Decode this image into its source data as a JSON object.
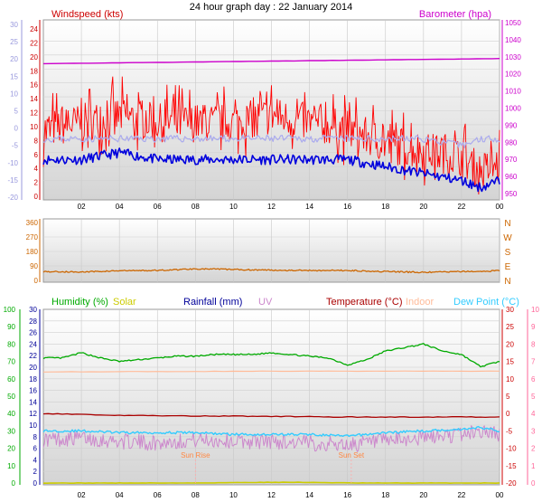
{
  "title": "24 hour graph day : 22 January 2014",
  "x_ticks": [
    "02",
    "04",
    "06",
    "08",
    "10",
    "12",
    "14",
    "16",
    "18",
    "20",
    "22",
    "00"
  ],
  "colors": {
    "wind_gust": "#ff0000",
    "wind_avg": "#0000dd",
    "wind_dir_line": "#aaaaee",
    "barometer": "#cc00cc",
    "direction": "#cc6600",
    "humidity": "#00aa00",
    "solar": "#cccc00",
    "rainfall": "#000099",
    "uv": "#cc88cc",
    "temperature": "#aa0000",
    "indoor": "#ffbb99",
    "dewpoint": "#33ccff",
    "axis_left_top": "#9999dd",
    "axis_right_top": "#cc00cc",
    "axis_left_bottom": "#00aa00",
    "axis_right_bottom": "#ff6699"
  },
  "chart_data": [
    {
      "type": "line",
      "panel": "wind-barometer",
      "left_axis_label": "Windspeed (kts)",
      "right_axis_label": "Barometer (hpa)",
      "left_ticks_knots": [
        "24",
        "22",
        "20",
        "18",
        "16",
        "14",
        "12",
        "10",
        "8",
        "6",
        "4",
        "2",
        "0"
      ],
      "left_ticks_outer": [
        "30",
        "25",
        "20",
        "15",
        "10",
        "5",
        "0",
        "-5",
        "-10",
        "-15",
        "-20"
      ],
      "right_ticks": [
        "1050",
        "1040",
        "1030",
        "1020",
        "1010",
        "1000",
        "990",
        "980",
        "970",
        "960",
        "950"
      ],
      "ylim_left": [
        0,
        25
      ],
      "ylim_right": [
        945,
        1052
      ],
      "series": [
        {
          "key": "gust",
          "x": [
            0,
            2,
            4,
            6,
            8,
            10,
            12,
            14,
            16,
            18,
            20,
            22,
            23,
            24
          ],
          "values": [
            9,
            10,
            11,
            10,
            10,
            10,
            11,
            10,
            9,
            7,
            6,
            5,
            3,
            4
          ]
        },
        {
          "key": "avg",
          "x": [
            0,
            2,
            4,
            6,
            8,
            10,
            12,
            14,
            16,
            18,
            20,
            22,
            23,
            24
          ],
          "values": [
            5,
            5,
            6,
            5,
            5,
            5,
            5,
            5,
            5,
            4,
            3,
            2,
            1,
            2
          ]
        },
        {
          "key": "direction_line",
          "x": [
            0,
            2,
            4,
            6,
            8,
            10,
            12,
            14,
            16,
            18,
            20,
            22,
            23,
            24
          ],
          "values": [
            8,
            8,
            8,
            8,
            8,
            8,
            8,
            8,
            8,
            8,
            8,
            7,
            8,
            8
          ]
        },
        {
          "key": "barometer",
          "x": [
            0,
            4,
            8,
            12,
            16,
            20,
            24
          ],
          "values": [
            1026,
            1026.5,
            1027,
            1027.5,
            1028,
            1028.5,
            1029
          ]
        }
      ]
    },
    {
      "type": "line",
      "panel": "direction",
      "left_ticks": [
        "360",
        "270",
        "180",
        "90",
        "0"
      ],
      "right_labels": [
        "N",
        "W",
        "S",
        "E",
        "N"
      ],
      "ylim": [
        0,
        360
      ],
      "series": [
        {
          "key": "direction",
          "x": [
            0,
            2,
            4,
            6,
            8,
            10,
            12,
            14,
            16,
            18,
            20,
            22,
            23,
            24
          ],
          "values": [
            55,
            52,
            60,
            62,
            72,
            68,
            64,
            62,
            62,
            55,
            50,
            55,
            55,
            62
          ]
        }
      ]
    },
    {
      "type": "line",
      "panel": "temp-humidity",
      "legend": [
        "Humidity (%)",
        "Solar",
        "Rainfall (mm)",
        "UV",
        "Temperature (°C)",
        "Indoor",
        "Dew Point (°C)"
      ],
      "left_ticks_pct": [
        "100",
        "90",
        "80",
        "70",
        "60",
        "50",
        "40",
        "30",
        "20",
        "10",
        "0"
      ],
      "left_ticks_inner": [
        "30",
        "28",
        "26",
        "24",
        "22",
        "20",
        "18",
        "16",
        "14",
        "12",
        "10",
        "8",
        "6",
        "4",
        "2",
        "0"
      ],
      "right_ticks_temp": [
        "30",
        "25",
        "20",
        "15",
        "10",
        "5",
        "0",
        "-5",
        "-10",
        "-15",
        "-20"
      ],
      "right_ticks_uv": [
        "10",
        "9",
        "8",
        "7",
        "6",
        "5",
        "4",
        "3",
        "2",
        "1",
        "0"
      ],
      "ylim_pct": [
        0,
        100
      ],
      "ylim_temp": [
        -20,
        30
      ],
      "annotations": [
        {
          "text": "Sun Rise",
          "x": 8.0
        },
        {
          "text": "Sun Set",
          "x": 16.2
        }
      ],
      "series": [
        {
          "key": "humidity",
          "x": [
            0,
            1,
            2,
            3,
            4,
            5,
            6,
            7,
            8,
            9,
            10,
            11,
            12,
            13,
            14,
            15,
            16,
            17,
            18,
            19,
            20,
            21,
            22,
            23,
            24
          ],
          "values": [
            72,
            72,
            75,
            72,
            70,
            71,
            72,
            73,
            73,
            74,
            74,
            74,
            75,
            74,
            73,
            72,
            68,
            71,
            76,
            78,
            80,
            76,
            74,
            67,
            70
          ]
        },
        {
          "key": "temperature",
          "x": [
            0,
            4,
            8,
            12,
            16,
            20,
            24
          ],
          "values": [
            0,
            -0.5,
            -0.7,
            -0.8,
            -1,
            -1,
            -1
          ]
        },
        {
          "key": "dewpoint",
          "x": [
            0,
            2,
            4,
            6,
            8,
            10,
            12,
            14,
            16,
            18,
            20,
            22,
            23,
            24
          ],
          "values": [
            -5,
            -5,
            -5.5,
            -5.5,
            -5.5,
            -6,
            -6,
            -6,
            -6.5,
            -5.5,
            -5,
            -4.5,
            -4,
            -5
          ]
        },
        {
          "key": "indoor",
          "x": [
            0,
            12,
            24
          ],
          "values": [
            12,
            12.2,
            12.2
          ]
        },
        {
          "key": "uv",
          "x": [
            0,
            2,
            4,
            6,
            8,
            10,
            12,
            14,
            16,
            18,
            20,
            22,
            23,
            24
          ],
          "values": [
            2.5,
            2.6,
            2.4,
            2.3,
            2.5,
            2.4,
            2.4,
            2.3,
            2.2,
            2.4,
            2.6,
            2.8,
            3.0,
            2.8
          ]
        },
        {
          "key": "solar",
          "x": [
            7.5,
            9,
            10.5,
            12,
            13.5,
            15,
            16.5
          ],
          "values": [
            0,
            0.1,
            0.3,
            0.4,
            0.4,
            0.2,
            0
          ]
        }
      ]
    }
  ]
}
